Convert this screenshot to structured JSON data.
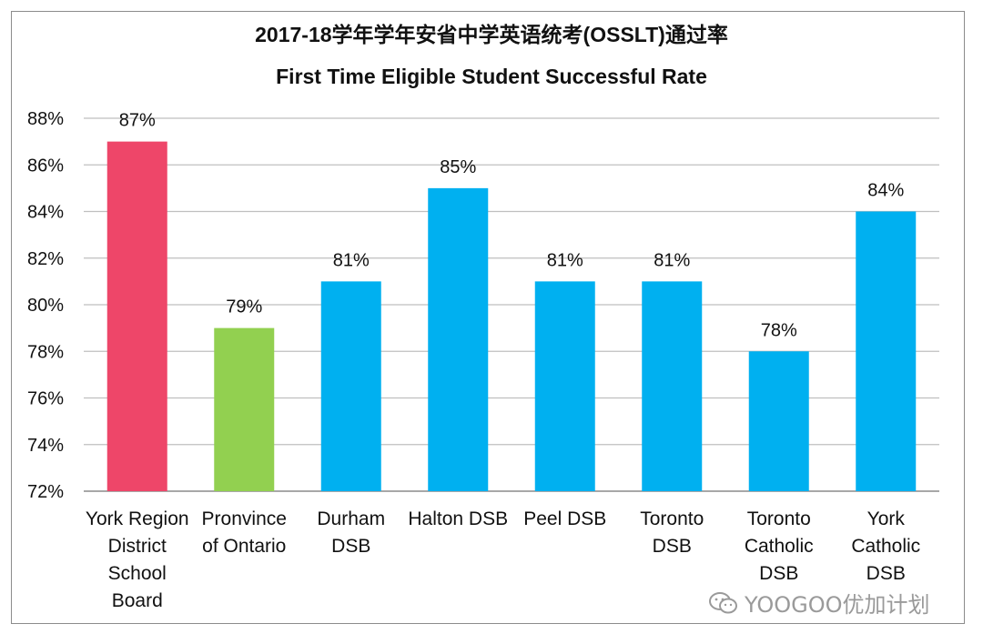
{
  "chart_data": {
    "type": "bar",
    "title": "2017-18学年学年安省中学英语统考(OSSLT)通过率",
    "subtitle": "First Time Eligible Student Successful Rate",
    "categories": [
      "York Region\nDistrict\nSchool\nBoard",
      "Pronvince\nof Ontario",
      "Durham\nDSB",
      "Halton DSB",
      "Peel DSB",
      "Toronto\nDSB",
      "Toronto\nCatholic\nDSB",
      "York\nCatholic\nDSB"
    ],
    "values": [
      87,
      79,
      81,
      85,
      81,
      81,
      78,
      84
    ],
    "data_labels": [
      "87%",
      "79%",
      "81%",
      "85%",
      "81%",
      "81%",
      "78%",
      "84%"
    ],
    "bar_colors": [
      "#ee4669",
      "#92d050",
      "#00b0f0",
      "#00b0f0",
      "#00b0f0",
      "#00b0f0",
      "#00b0f0",
      "#00b0f0"
    ],
    "ylim": [
      72,
      88
    ],
    "yticks": [
      72,
      74,
      76,
      78,
      80,
      82,
      84,
      86,
      88
    ],
    "ytick_labels": [
      "72%",
      "74%",
      "76%",
      "78%",
      "80%",
      "82%",
      "84%",
      "86%",
      "88%"
    ],
    "grid": true,
    "legend": "none"
  },
  "watermark": {
    "icon": "wechat-icon",
    "text": "YOOGOO优加计划"
  }
}
